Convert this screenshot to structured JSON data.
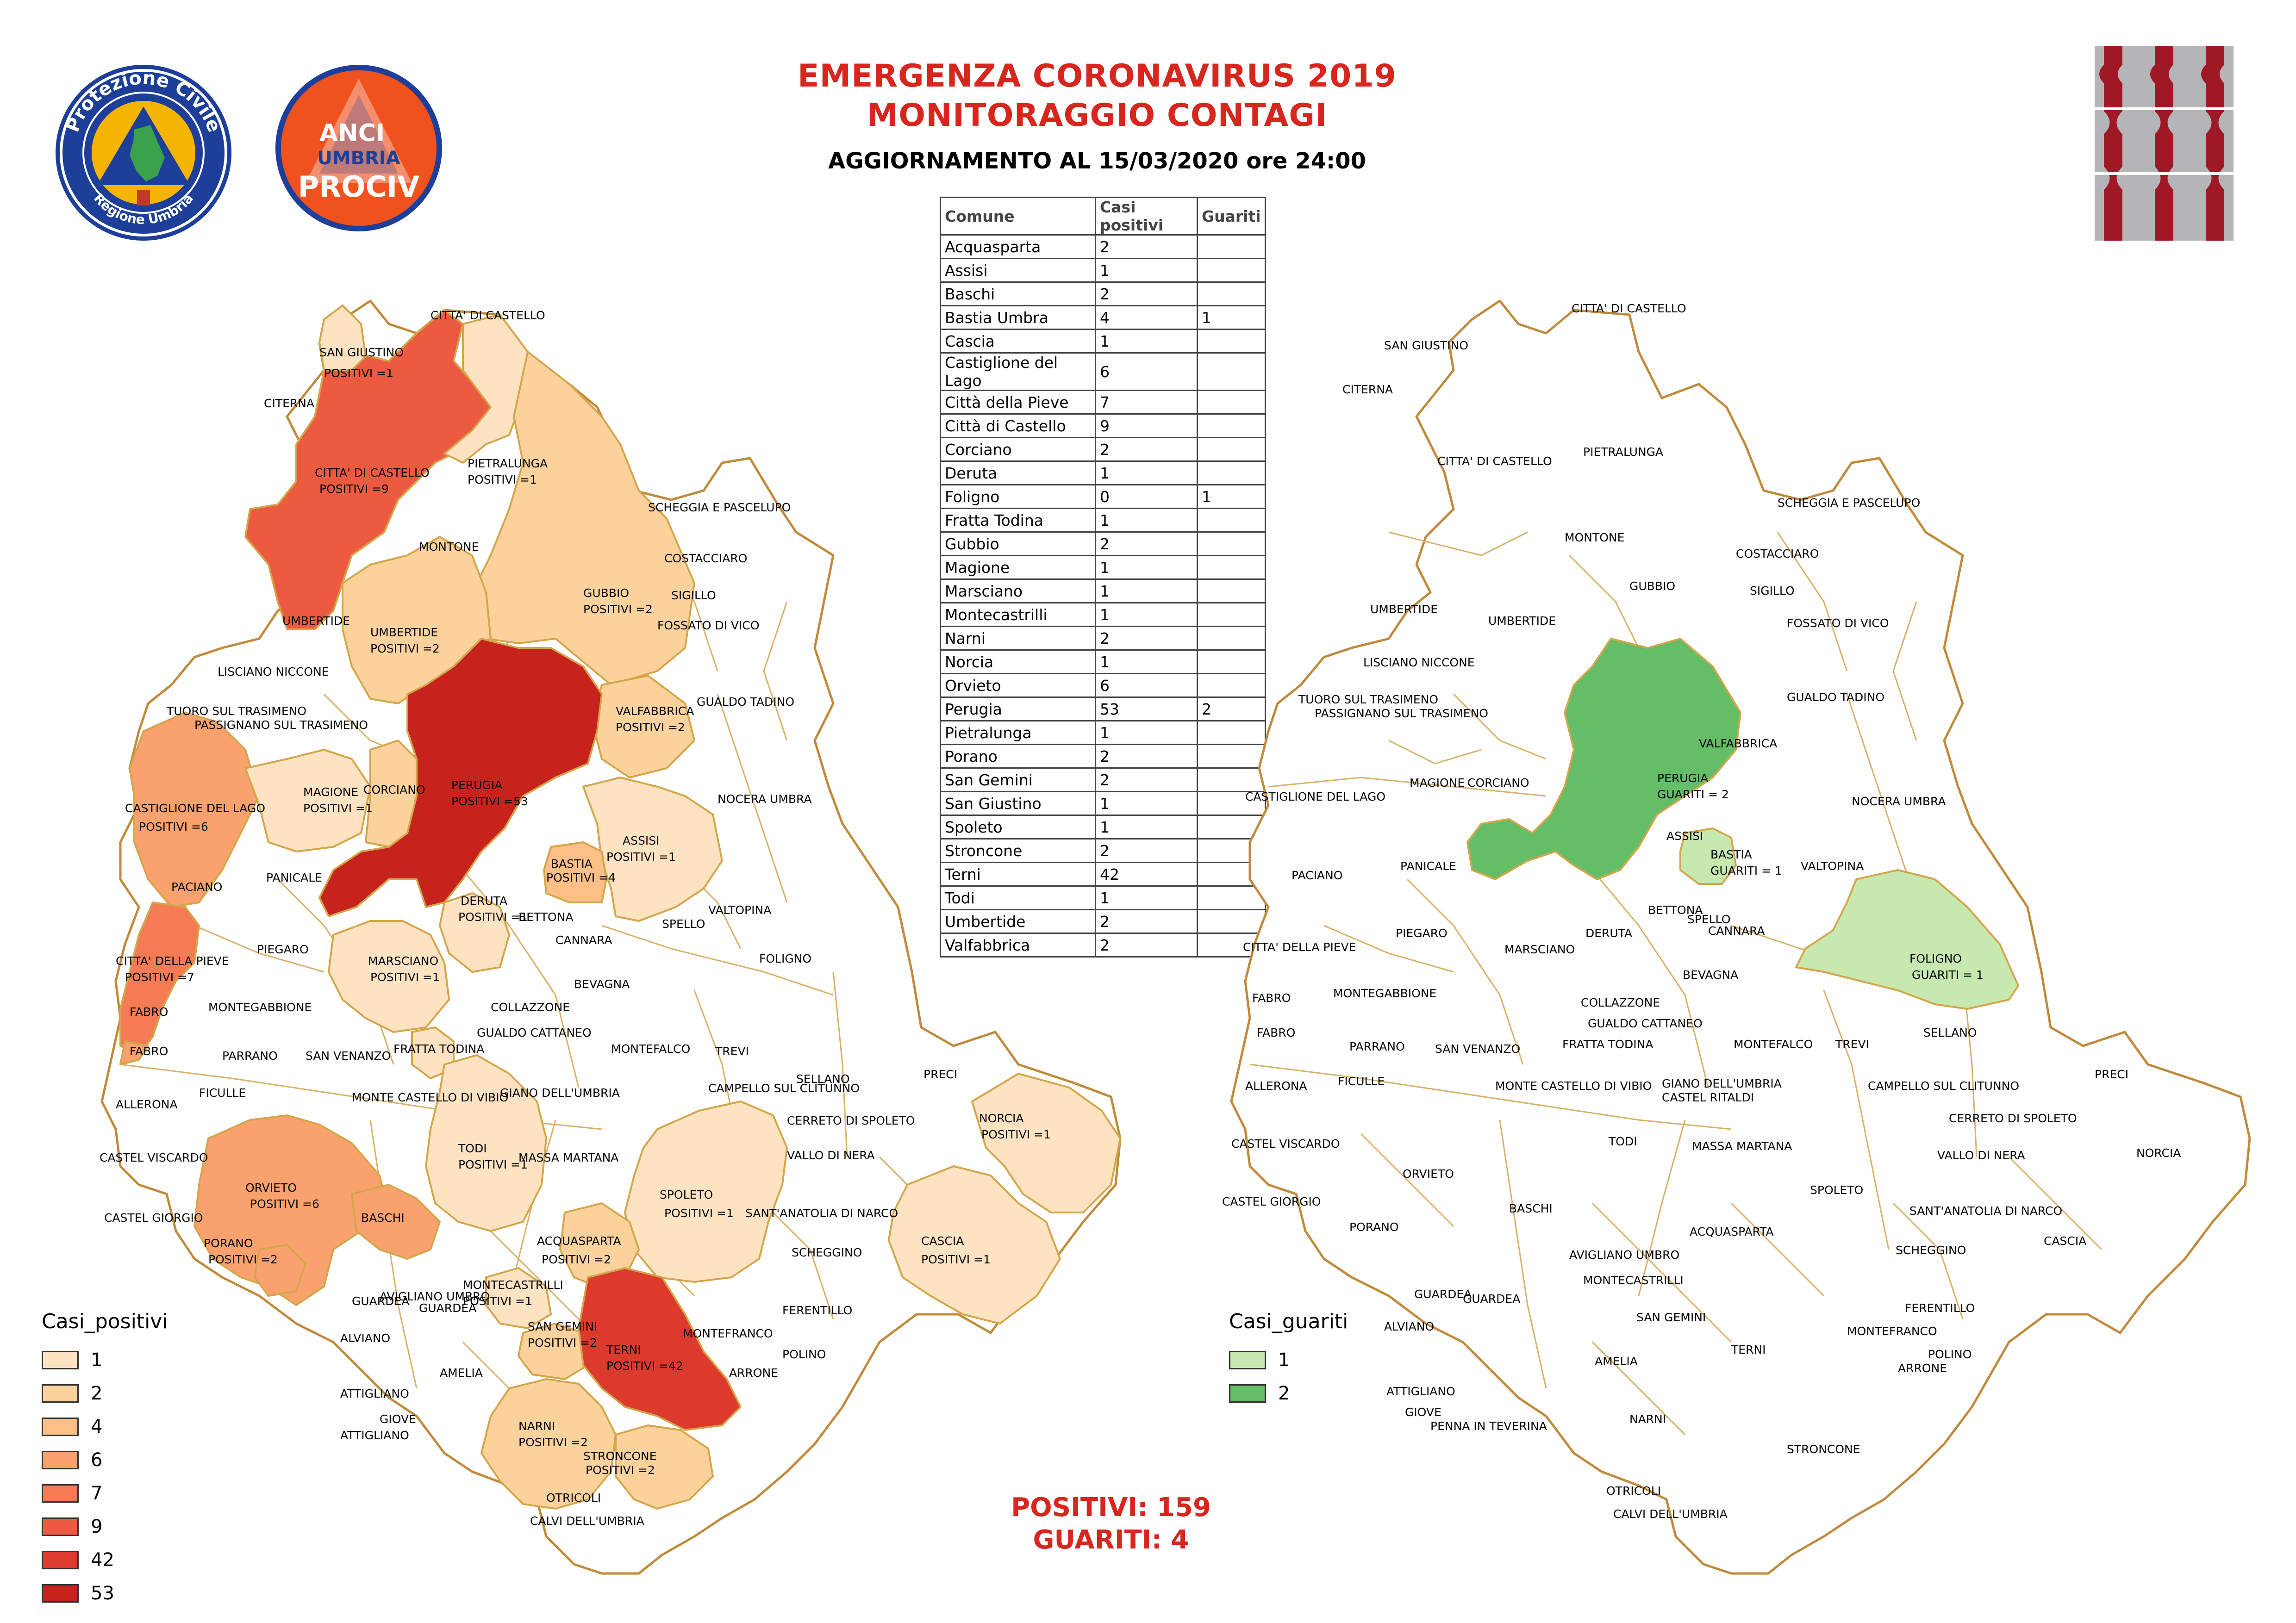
{
  "header": {
    "title_line1": "EMERGENZA CORONAVIRUS 2019",
    "title_line2": "MONITORAGGIO CONTAGI",
    "update": "AGGIORNAMENTO AL 15/03/2020 ore 24:00"
  },
  "logos": {
    "protezione_civile": "Protezione Civile",
    "regione": "Regione Umbria",
    "anci_top": "ANCI",
    "anci_mid": "UMBRIA",
    "anci_bottom": "PROCIV"
  },
  "table": {
    "headers": [
      "Comune",
      "Casi positivi",
      "Guariti"
    ],
    "rows": [
      [
        "Acquasparta",
        "2",
        ""
      ],
      [
        "Assisi",
        "1",
        ""
      ],
      [
        "Baschi",
        "2",
        ""
      ],
      [
        "Bastia Umbra",
        "4",
        "1"
      ],
      [
        "Cascia",
        "1",
        ""
      ],
      [
        "Castiglione del Lago",
        "6",
        ""
      ],
      [
        "Città  della Pieve",
        "7",
        ""
      ],
      [
        "Città  di Castello",
        "9",
        ""
      ],
      [
        "Corciano",
        "2",
        ""
      ],
      [
        "Deruta",
        "1",
        ""
      ],
      [
        "Foligno",
        "0",
        "1"
      ],
      [
        "Fratta Todina",
        "1",
        ""
      ],
      [
        "Gubbio",
        "2",
        ""
      ],
      [
        "Magione",
        "1",
        ""
      ],
      [
        "Marsciano",
        "1",
        ""
      ],
      [
        "Montecastrilli",
        "1",
        ""
      ],
      [
        "Narni",
        "2",
        ""
      ],
      [
        "Norcia",
        "1",
        ""
      ],
      [
        "Orvieto",
        "6",
        ""
      ],
      [
        "Perugia",
        "53",
        "2"
      ],
      [
        "Pietralunga",
        "1",
        ""
      ],
      [
        "Porano",
        "2",
        ""
      ],
      [
        "San Gemini",
        "2",
        ""
      ],
      [
        "San Giustino",
        "1",
        ""
      ],
      [
        "Spoleto",
        "1",
        ""
      ],
      [
        "Stroncone",
        "2",
        ""
      ],
      [
        "Terni",
        "42",
        ""
      ],
      [
        "Todi",
        "1",
        ""
      ],
      [
        "Umbertide",
        "2",
        ""
      ],
      [
        "Valfabbrica",
        "2",
        ""
      ]
    ]
  },
  "legend_positivi": {
    "title": "Casi_positivi",
    "items": [
      {
        "label": "1",
        "color": "#fde3c2"
      },
      {
        "label": "2",
        "color": "#fcd29c"
      },
      {
        "label": "4",
        "color": "#fcbf86"
      },
      {
        "label": "6",
        "color": "#f9a26e"
      },
      {
        "label": "7",
        "color": "#f57b55"
      },
      {
        "label": "9",
        "color": "#ec5b40"
      },
      {
        "label": "42",
        "color": "#dc3a2c"
      },
      {
        "label": "53",
        "color": "#c5231c"
      }
    ]
  },
  "legend_guariti": {
    "title": "Casi_guariti",
    "items": [
      {
        "label": "1",
        "color": "#c7e9b0"
      },
      {
        "label": "2",
        "color": "#63be67"
      }
    ]
  },
  "totals": {
    "positivi": "POSITIVI: 159",
    "guariti": "GUARITI:  4"
  },
  "left_map": {
    "labels": [
      "CITTA' DI CASTELLO",
      "SAN GIUSTINO",
      "POSITIVI =1",
      "CITERNA",
      "CITTA' DI CASTELLO",
      "POSITIVI =9",
      "PIETRALUNGA",
      "POSITIVI =1",
      "SCHEGGIA E PASCELUPO",
      "MONTONE",
      "COSTACCIARO",
      "GUBBIO",
      "POSITIVI =2",
      "SIGILLO",
      "UMBERTIDE",
      "UMBERTIDE",
      "POSITIVI =2",
      "FOSSATO DI VICO",
      "LISCIANO NICCONE",
      "TUORO SUL TRASIMENO",
      "PASSIGNANO SUL TRASIMENO",
      "GUALDO TADINO",
      "VALFABBRICA",
      "POSITIVI =2",
      "CASTIGLIONE DEL LAGO",
      "POSITIVI =6",
      "MAGIONE",
      "POSITIVI =1",
      "CORCIANO",
      "PERUGIA",
      "POSITIVI =53",
      "NOCERA UMBRA",
      "ASSISI",
      "POSITIVI =1",
      "BASTIA",
      "POSITIVI =4",
      "PACIANO",
      "PANICALE",
      "VALTOPINA",
      "DERUTA",
      "POSITIVI =1",
      "BETTONA",
      "SPELLO",
      "CANNARA",
      "CITTA' DELLA PIEVE",
      "POSITIVI =7",
      "PIEGARO",
      "MARSCIANO",
      "POSITIVI =1",
      "FOLIGNO",
      "BEVAGNA",
      "MONTEGABBIONE",
      "COLLAZZONE",
      "FABRO",
      "FABRO",
      "GUALDO CATTANEO",
      "MONTEFALCO",
      "TREVI",
      "SELLANO",
      "PARRANO",
      "SAN VENANZO",
      "FRATTA TODINA",
      "PRECI",
      "ALLERONA",
      "FICULLE",
      "MONTE CASTELLO DI VIBIO",
      "GIANO DELL'UMBRIA",
      "CAMPELLO SUL CLITUNNO",
      "CERRETO DI SPOLETO",
      "NORCIA",
      "POSITIVI =1",
      "CASTEL VISCARDO",
      "TODI",
      "POSITIVI =1",
      "MASSA MARTANA",
      "VALLO DI NERA",
      "ORVIETO",
      "POSITIVI =6",
      "SPOLETO",
      "POSITIVI =1",
      "SANT'ANATOLIA DI NARCO",
      "CASTEL GIORGIO",
      "BASCHI",
      "PORANO",
      "POSITIVI =2",
      "ACQUASPARTA",
      "POSITIVI =2",
      "CASCIA",
      "POSITIVI =1",
      "SCHEGGINO",
      "AVIGLIANO UMBRO",
      "MONTECASTRILLI",
      "POSITIVI =1",
      "GUARDEA",
      "GUARDEA",
      "FERENTILLO",
      "SAN GEMINI",
      "POSITIVI =2",
      "ALVIANO",
      "MONTEFRANCO",
      "TERNI",
      "POSITIVI =42",
      "POLINO",
      "AMELIA",
      "ARRONE",
      "ATTIGLIANO",
      "GIOVE",
      "ATTIGLIANO",
      "NARNI",
      "POSITIVI =2",
      "STRONCONE",
      "POSITIVI =2",
      "OTRICOLI",
      "CALVI DELL'UMBRIA"
    ]
  },
  "right_map": {
    "labels": [
      "CITTA' DI CASTELLO",
      "SAN GIUSTINO",
      "CITERNA",
      "PIETRALUNGA",
      "CITTA' DI CASTELLO",
      "SCHEGGIA E PASCELUPO",
      "MONTONE",
      "COSTACCIARO",
      "GUBBIO",
      "SIGILLO",
      "UMBERTIDE",
      "UMBERTIDE",
      "FOSSATO DI VICO",
      "LISCIANO NICCONE",
      "TUORO SUL TRASIMENO",
      "PASSIGNANO SUL TRASIMENO",
      "GUALDO TADINO",
      "VALFABBRICA",
      "PERUGIA",
      "GUARITI = 2",
      "CASTIGLIONE DEL LAGO",
      "MAGIONE",
      "CORCIANO",
      "NOCERA UMBRA",
      "ASSISI",
      "BASTIA",
      "GUARITI = 1",
      "PANICALE",
      "PACIANO",
      "VALTOPINA",
      "SPELLO",
      "BETTONA",
      "DERUTA",
      "CANNARA",
      "CITTA' DELLA PIEVE",
      "PIEGARO",
      "MARSCIANO",
      "FOLIGNO",
      "GUARITI = 1",
      "BEVAGNA",
      "FABRO",
      "MONTEGABBIONE",
      "COLLAZZONE",
      "FABRO",
      "GUALDO CATTANEO",
      "FRATTA TODINA",
      "MONTEFALCO",
      "TREVI",
      "SELLANO",
      "PARRANO",
      "SAN VENANZO",
      "ALLERONA",
      "FICULLE",
      "MONTE CASTELLO DI VIBIO",
      "GIANO DELL'UMBRIA",
      "CASTEL RITALDI",
      "CAMPELLO SUL CLITUNNO",
      "PRECI",
      "CERRETO DI SPOLETO",
      "CASTEL VISCARDO",
      "TODI",
      "MASSA MARTANA",
      "NORCIA",
      "VALLO DI NERA",
      "ORVIETO",
      "CASTEL GIORGIO",
      "SPOLETO",
      "SANT'ANATOLIA DI NARCO",
      "BASCHI",
      "PORANO",
      "ACQUASPARTA",
      "CASCIA",
      "SCHEGGINO",
      "AVIGLIANO UMBRO",
      "MONTECASTRILLI",
      "GUARDEA",
      "GUARDEA",
      "FERENTILLO",
      "SAN GEMINI",
      "ALVIANO",
      "MONTEFRANCO",
      "TERNI",
      "POLINO",
      "AMELIA",
      "ARRONE",
      "ATTIGLIANO",
      "GIOVE",
      "PENNA IN TEVERINA",
      "NARNI",
      "STRONCONE",
      "OTRICOLI",
      "CALVI DELL'UMBRIA"
    ]
  }
}
